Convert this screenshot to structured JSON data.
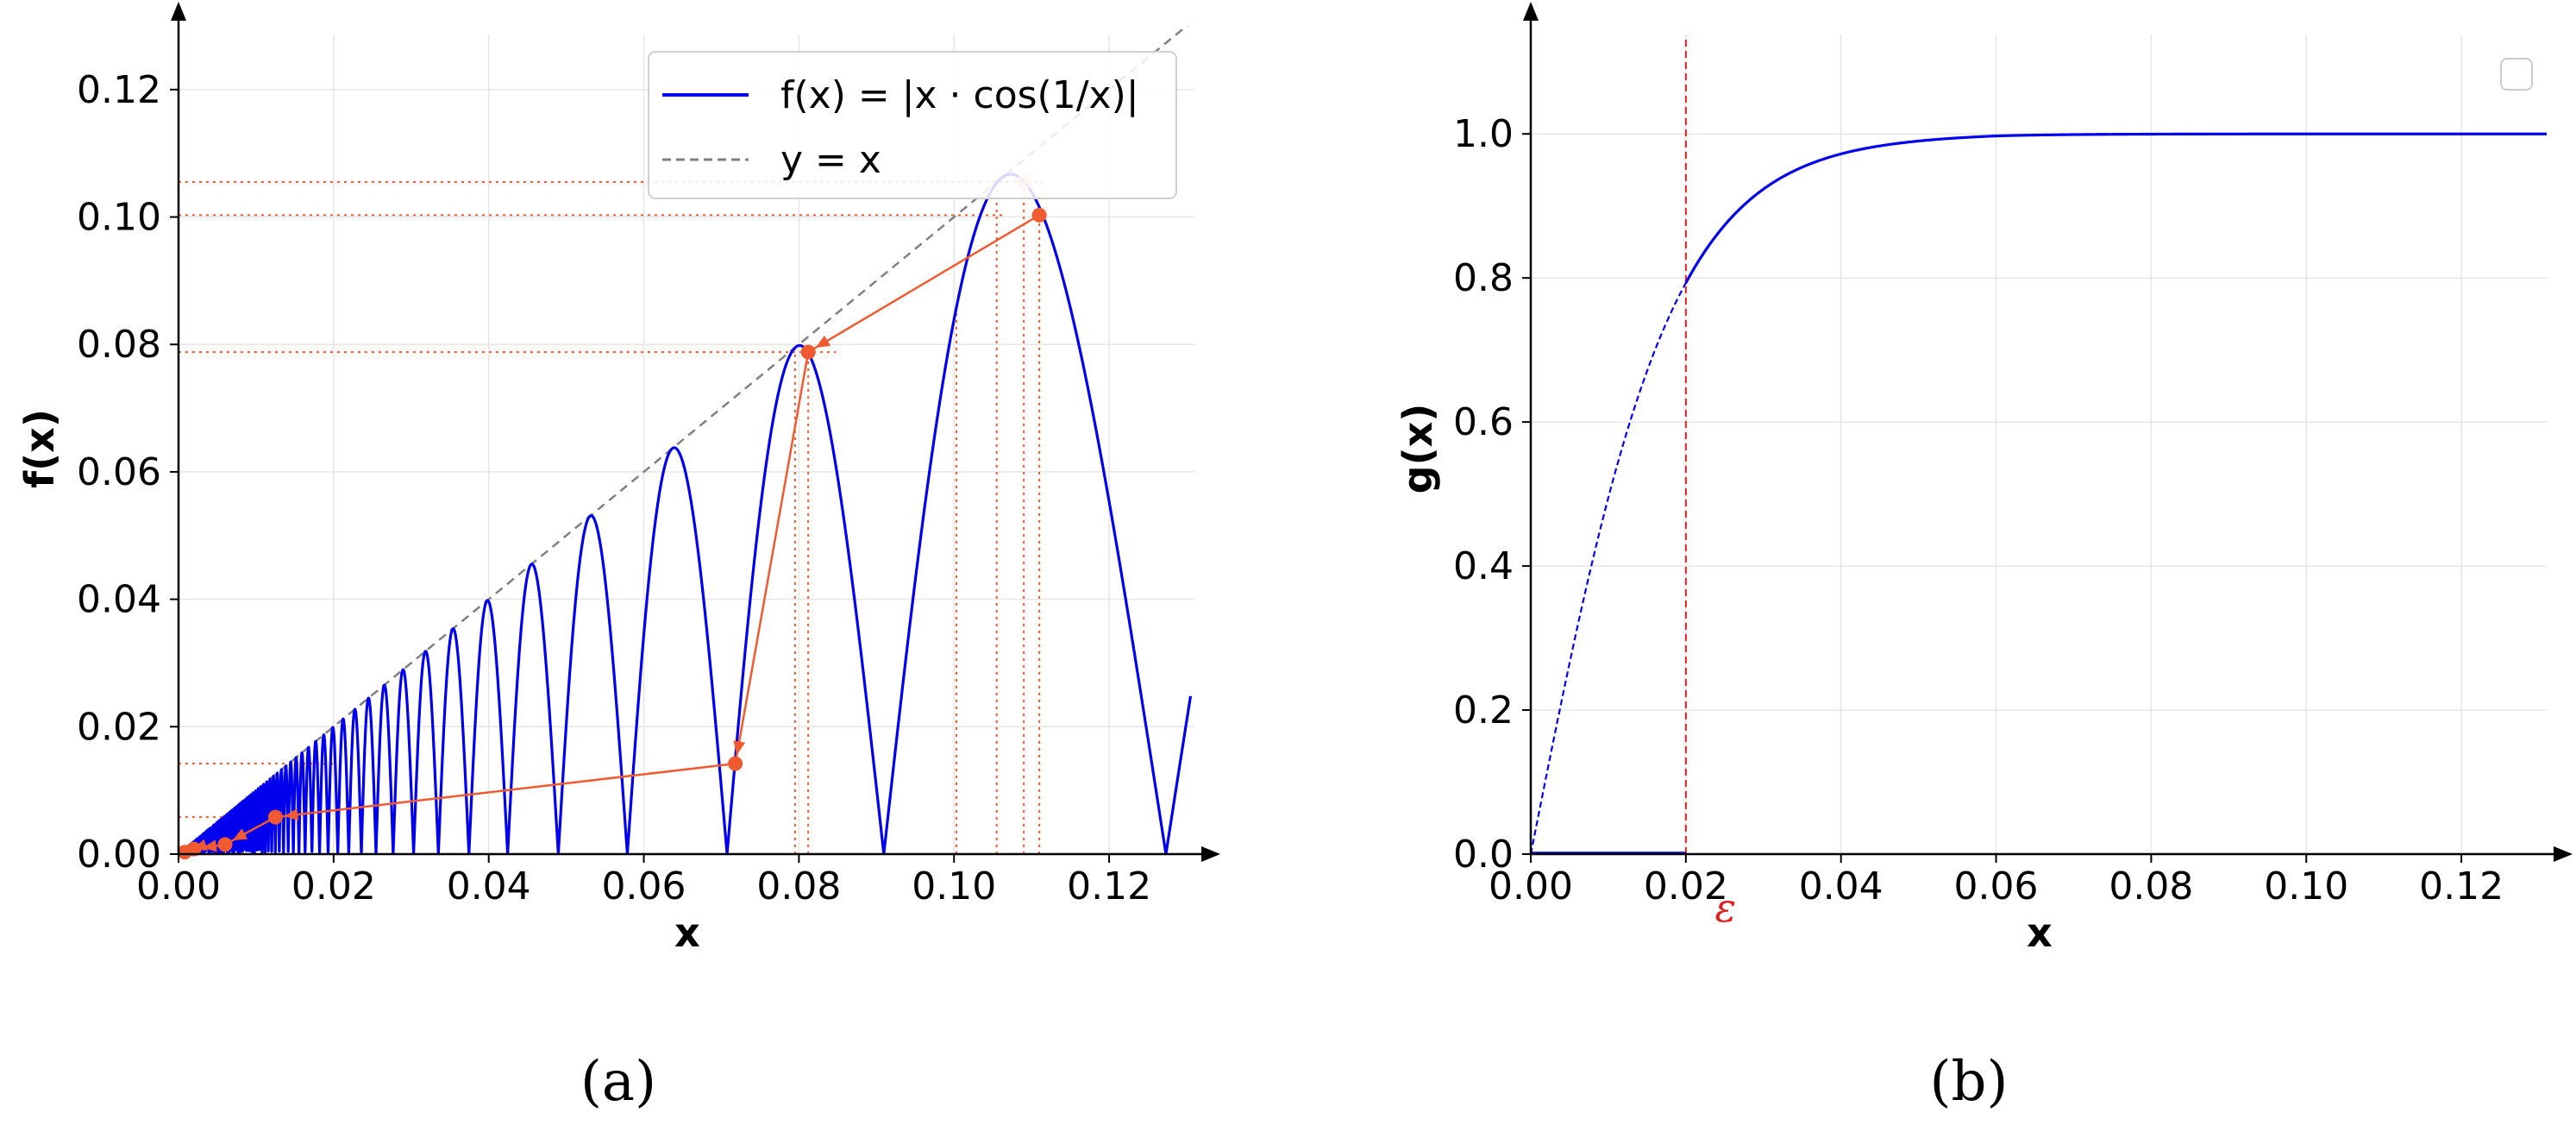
{
  "captions": {
    "a": "(a)",
    "b": "(b)"
  },
  "chart_data": [
    {
      "type": "line",
      "panel": "a",
      "xlabel": "x",
      "ylabel": "f(x)",
      "xlim": [
        0,
        0.131
      ],
      "ylim": [
        0,
        0.13
      ],
      "x_ticks": [
        "0.00",
        "0.02",
        "0.04",
        "0.06",
        "0.08",
        "0.10",
        "0.12"
      ],
      "y_ticks": [
        "0.00",
        "0.02",
        "0.04",
        "0.06",
        "0.08",
        "0.10",
        "0.12"
      ],
      "grid": true,
      "legend_position": "top-right",
      "series": [
        {
          "name": "f(x) = |x · cos(1/x)|",
          "color": "#0000ee",
          "style": "solid",
          "function": "abs(x*cos(1/x))"
        },
        {
          "name": "y = x",
          "color": "#808080",
          "style": "dashed"
        }
      ],
      "iteration_path": {
        "color": "#f05a30",
        "points": [
          [
            0.111,
            0.1003
          ],
          [
            0.0812,
            0.0788
          ],
          [
            0.0718,
            0.0142
          ],
          [
            0.0125,
            0.0058
          ],
          [
            0.006,
            0.0015
          ],
          [
            0.002,
            0.0008
          ],
          [
            0.0008,
            0.0003
          ]
        ],
        "guide_y": [
          0.1055,
          0.1003,
          0.0788,
          0.0142,
          0.0058
        ],
        "guide_x": [
          0.0795,
          0.0812,
          0.1003,
          0.1055,
          0.109,
          0.111
        ]
      }
    },
    {
      "type": "line",
      "panel": "b",
      "xlabel": "x",
      "ylabel": "g(x)",
      "xlim": [
        0,
        0.131
      ],
      "ylim": [
        0,
        1.15
      ],
      "x_ticks": [
        "0.00",
        "0.02",
        "0.04",
        "0.06",
        "0.08",
        "0.10",
        "0.12"
      ],
      "y_ticks": [
        "0.0",
        "0.2",
        "0.4",
        "0.6",
        "0.8",
        "1.0"
      ],
      "grid": true,
      "legend_position": "top-right",
      "epsilon": {
        "x": 0.02,
        "label": "ε",
        "color": "#e02020"
      },
      "series": [
        {
          "color": "#0000ee",
          "style": "solid",
          "description": "g(x) above ε"
        },
        {
          "color": "#0000ee",
          "style": "dashed",
          "description": "g(x) below ε"
        },
        {
          "color": "#0000ee",
          "style": "solid",
          "description": "zero segment on [0, ε]"
        }
      ]
    }
  ]
}
